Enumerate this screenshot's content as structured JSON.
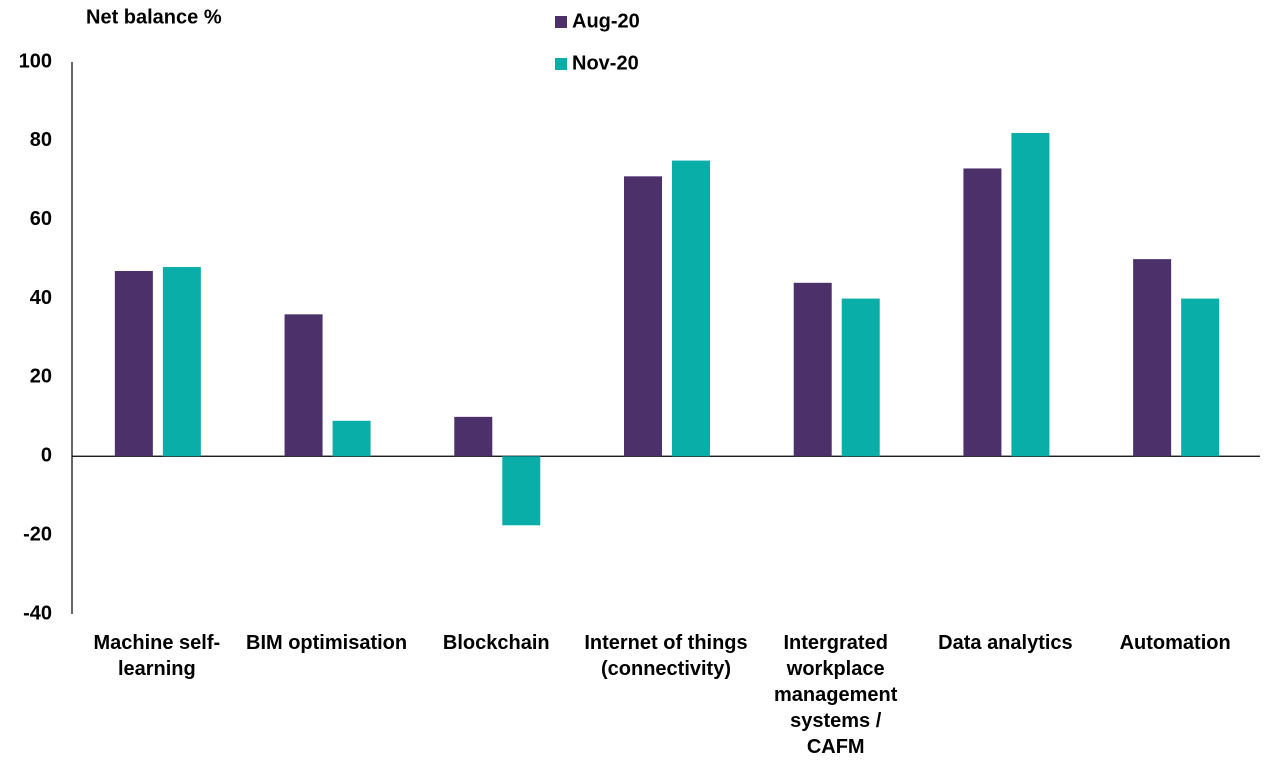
{
  "chart_data": {
    "type": "bar",
    "y_label": "Net balance %",
    "categories": [
      "Machine self-learning",
      "BIM optimisation",
      "Blockchain",
      "Internet of things (connectivity)",
      "Intergrated workplace management systems / CAFM",
      "Data analytics",
      "Automation"
    ],
    "series": [
      {
        "name": "Aug-20",
        "color": "#4b3069",
        "values": [
          47,
          36,
          10,
          71,
          44,
          73,
          50
        ]
      },
      {
        "name": "Nov-20",
        "color": "#0aaea8",
        "values": [
          48,
          9,
          -17.5,
          75,
          40,
          82,
          40
        ]
      }
    ],
    "ylim": [
      -40,
      100
    ],
    "yticks": [
      -40,
      -20,
      0,
      20,
      40,
      60,
      80,
      100
    ],
    "grid": false
  }
}
